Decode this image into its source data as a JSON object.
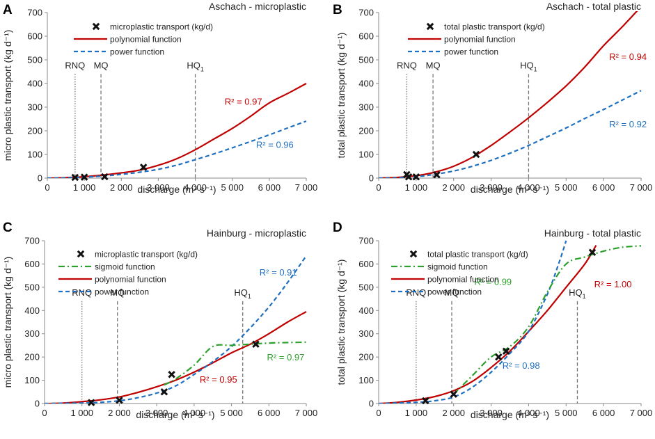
{
  "colors": {
    "poly": "#c00000",
    "power": "#1f6fc0",
    "sigmoid": "#2ca02c",
    "marker": "#111111",
    "axis": "#888888",
    "qline": "#777777"
  },
  "chart_data": [
    {
      "type": "scatter",
      "panel_label": "A",
      "title": "Aschach - microplastic",
      "xlabel": "discharge (m³ s⁻¹)",
      "ylabel": "micro plastic transport (kg d⁻¹)",
      "xlim": [
        0,
        7000
      ],
      "ylim": [
        0,
        700
      ],
      "xticks": [
        0,
        1000,
        2000,
        3000,
        4000,
        5000,
        6000,
        7000
      ],
      "yticks": [
        0,
        100,
        200,
        300,
        400,
        500,
        600,
        700
      ],
      "xtick_labels": [
        "0",
        "1 000",
        "2 000",
        "3 000",
        "4 000",
        "5 000",
        "6 000",
        "7 000"
      ],
      "ytick_labels": [
        "0",
        "100",
        "200",
        "300",
        "400",
        "500",
        "600",
        "700"
      ],
      "legend": [
        {
          "kind": "marker",
          "label": "microplastic transport (kg/d)"
        },
        {
          "kind": "poly",
          "label": "polynomial function"
        },
        {
          "kind": "power",
          "label": "power function"
        }
      ],
      "points": [
        {
          "x": 750,
          "y": 3
        },
        {
          "x": 1000,
          "y": 4
        },
        {
          "x": 1550,
          "y": 6
        },
        {
          "x": 2600,
          "y": 46
        }
      ],
      "series": [
        {
          "name": "polynomial function",
          "kind": "poly",
          "x": [
            0,
            500,
            1000,
            1500,
            2000,
            2500,
            3000,
            3500,
            4000,
            4500,
            5000,
            5500,
            6000,
            6500,
            7000
          ],
          "y": [
            0,
            2,
            6,
            13,
            22,
            34,
            54,
            82,
            120,
            165,
            210,
            262,
            318,
            358,
            400
          ]
        },
        {
          "name": "power function",
          "kind": "power",
          "x": [
            0,
            500,
            1000,
            1500,
            2000,
            2500,
            3000,
            3500,
            4000,
            4500,
            5000,
            5500,
            6000,
            6500,
            7000
          ],
          "y": [
            0,
            1,
            4,
            9,
            16,
            25,
            37,
            55,
            78,
            102,
            128,
            155,
            183,
            212,
            241
          ]
        }
      ],
      "qlines": [
        {
          "label": "RNQ",
          "x": 750,
          "style": "dot"
        },
        {
          "label": "MQ",
          "x": 1450,
          "style": "dash"
        },
        {
          "label": "HQ",
          "sub": "1",
          "x": 4000,
          "style": "dash"
        }
      ],
      "annotations": [
        {
          "text": "R² = 0.97",
          "x": 5300,
          "y": 310,
          "kind": "poly"
        },
        {
          "text": "R² = 0.96",
          "x": 6150,
          "y": 128,
          "kind": "power"
        }
      ]
    },
    {
      "type": "scatter",
      "panel_label": "B",
      "title": "Aschach - total plastic",
      "xlabel": "discharge (m³ s⁻¹)",
      "ylabel": "total plastic transport (kg d⁻¹)",
      "xlim": [
        0,
        7000
      ],
      "ylim": [
        0,
        700
      ],
      "xticks": [
        0,
        1000,
        2000,
        3000,
        4000,
        5000,
        6000,
        7000
      ],
      "yticks": [
        0,
        100,
        200,
        300,
        400,
        500,
        600,
        700
      ],
      "xtick_labels": [
        "0",
        "1 000",
        "2 000",
        "3 000",
        "4 000",
        "5 000",
        "6 000",
        "7 000"
      ],
      "ytick_labels": [
        "0",
        "100",
        "200",
        "300",
        "400",
        "500",
        "600",
        "700"
      ],
      "legend": [
        {
          "kind": "marker",
          "label": "total plastic transport (kg/d)"
        },
        {
          "kind": "poly",
          "label": "polynomial function"
        },
        {
          "kind": "power",
          "label": "power function"
        }
      ],
      "points": [
        {
          "x": 750,
          "y": 15
        },
        {
          "x": 800,
          "y": 5
        },
        {
          "x": 1000,
          "y": 5
        },
        {
          "x": 1550,
          "y": 14
        },
        {
          "x": 2600,
          "y": 100
        }
      ],
      "series": [
        {
          "name": "polynomial function",
          "kind": "poly",
          "x": [
            0,
            500,
            1000,
            1500,
            2000,
            2500,
            3000,
            3500,
            4000,
            4500,
            5000,
            5500,
            6000,
            6500,
            7000
          ],
          "y": [
            0,
            3,
            10,
            25,
            50,
            88,
            138,
            195,
            255,
            320,
            390,
            470,
            560,
            640,
            725
          ]
        },
        {
          "name": "power function",
          "kind": "power",
          "x": [
            0,
            500,
            1000,
            1500,
            2000,
            2500,
            3000,
            3500,
            4000,
            4500,
            5000,
            5500,
            6000,
            6500,
            7000
          ],
          "y": [
            0,
            1,
            6,
            16,
            30,
            50,
            75,
            105,
            138,
            175,
            212,
            252,
            290,
            330,
            370
          ]
        }
      ],
      "qlines": [
        {
          "label": "RNQ",
          "x": 750,
          "style": "dot"
        },
        {
          "label": "MQ",
          "x": 1450,
          "style": "dash"
        },
        {
          "label": "HQ",
          "sub": "1",
          "x": 4000,
          "style": "dash"
        }
      ],
      "annotations": [
        {
          "text": "R² = 0.94",
          "x": 6650,
          "y": 500,
          "kind": "poly"
        },
        {
          "text": "R² = 0.92",
          "x": 6650,
          "y": 215,
          "kind": "power"
        }
      ]
    },
    {
      "type": "scatter",
      "panel_label": "C",
      "title": "Hainburg - microplastic",
      "xlabel": "discharge (m³ s⁻¹)",
      "ylabel": "micro plastic transport (kg d⁻¹)",
      "xlim": [
        0,
        7000
      ],
      "ylim": [
        0,
        700
      ],
      "xticks": [
        0,
        1000,
        2000,
        3000,
        4000,
        5000,
        6000,
        7000
      ],
      "yticks": [
        0,
        100,
        200,
        300,
        400,
        500,
        600,
        700
      ],
      "xtick_labels": [
        "0",
        "1 000",
        "2 000",
        "3 000",
        "4 000",
        "5 000",
        "6 000",
        "7 000"
      ],
      "ytick_labels": [
        "0",
        "100",
        "200",
        "300",
        "400",
        "500",
        "600",
        "700"
      ],
      "legend": [
        {
          "kind": "marker",
          "label": "microplastic transport (kg/d)"
        },
        {
          "kind": "sigmoid",
          "label": "sigmoid function"
        },
        {
          "kind": "poly",
          "label": "polynomial function"
        },
        {
          "kind": "power",
          "label": "power function"
        }
      ],
      "points": [
        {
          "x": 1250,
          "y": 4
        },
        {
          "x": 2000,
          "y": 14
        },
        {
          "x": 3200,
          "y": 50
        },
        {
          "x": 3400,
          "y": 125
        },
        {
          "x": 5650,
          "y": 255
        }
      ],
      "series": [
        {
          "name": "polynomial function",
          "kind": "poly",
          "x": [
            0,
            500,
            1000,
            1500,
            2000,
            2500,
            3000,
            3500,
            4000,
            4500,
            5000,
            5500,
            6000,
            6500,
            7000
          ],
          "y": [
            0,
            2,
            8,
            16,
            28,
            48,
            72,
            100,
            135,
            175,
            218,
            255,
            300,
            350,
            395
          ]
        },
        {
          "name": "power function",
          "kind": "power",
          "x": [
            0,
            1000,
            1500,
            2000,
            2500,
            3000,
            3500,
            4000,
            4500,
            5000,
            5500,
            6000,
            6500,
            7000
          ],
          "y": [
            0,
            2,
            5,
            12,
            25,
            45,
            75,
            125,
            180,
            245,
            325,
            415,
            520,
            635
          ]
        },
        {
          "name": "sigmoid function",
          "kind": "sigmoid",
          "x": [
            3200,
            3500,
            4000,
            4500,
            5000,
            5500,
            6000,
            6500,
            7000
          ],
          "y": [
            80,
            105,
            165,
            245,
            250,
            255,
            260,
            262,
            264
          ]
        }
      ],
      "qlines": [
        {
          "label": "RNQ",
          "x": 1000,
          "style": "dot"
        },
        {
          "label": "MQ",
          "x": 1950,
          "style": "dash"
        },
        {
          "label": "HQ",
          "sub": "1",
          "x": 5300,
          "style": "dash"
        }
      ],
      "annotations": [
        {
          "text": "R² = 0.91",
          "x": 6250,
          "y": 550,
          "kind": "power"
        },
        {
          "text": "R² = 0.97",
          "x": 6450,
          "y": 185,
          "kind": "sigmoid"
        },
        {
          "text": "R² = 0.95",
          "x": 4650,
          "y": 90,
          "kind": "poly"
        }
      ]
    },
    {
      "type": "scatter",
      "panel_label": "D",
      "title": "Hainburg - total plastic",
      "xlabel": "discharge (m³ s⁻¹)",
      "ylabel": "total plastic transport (kg d⁻¹)",
      "xlim": [
        0,
        7000
      ],
      "ylim": [
        0,
        700
      ],
      "xticks": [
        0,
        1000,
        2000,
        3000,
        4000,
        5000,
        6000,
        7000
      ],
      "yticks": [
        0,
        100,
        200,
        300,
        400,
        500,
        600,
        700
      ],
      "xtick_labels": [
        "0",
        "1 000",
        "2 000",
        "3 000",
        "4 000",
        "5 000",
        "6 000",
        "7 000"
      ],
      "ytick_labels": [
        "0",
        "100",
        "200",
        "300",
        "400",
        "500",
        "600",
        "700"
      ],
      "legend": [
        {
          "kind": "marker",
          "label": "total plastic transport (kg/d)"
        },
        {
          "kind": "sigmoid",
          "label": "sigmoid function"
        },
        {
          "kind": "poly",
          "label": "polynomial function"
        },
        {
          "kind": "power",
          "label": "power function"
        }
      ],
      "points": [
        {
          "x": 1250,
          "y": 12
        },
        {
          "x": 2000,
          "y": 40
        },
        {
          "x": 3200,
          "y": 200
        },
        {
          "x": 3400,
          "y": 225
        },
        {
          "x": 5700,
          "y": 650
        }
      ],
      "series": [
        {
          "name": "polynomial function",
          "kind": "poly",
          "x": [
            0,
            500,
            1000,
            1500,
            2000,
            2500,
            3000,
            3500,
            4000,
            4500,
            5000,
            5500,
            5800
          ],
          "y": [
            0,
            5,
            15,
            30,
            55,
            95,
            155,
            225,
            310,
            400,
            500,
            600,
            680
          ]
        },
        {
          "name": "power function",
          "kind": "power",
          "x": [
            0,
            1000,
            1500,
            2000,
            2500,
            3000,
            3500,
            4000,
            4500,
            4800,
            5000
          ],
          "y": [
            0,
            5,
            12,
            28,
            70,
            135,
            215,
            310,
            470,
            600,
            700
          ]
        },
        {
          "name": "sigmoid function",
          "kind": "sigmoid",
          "x": [
            2000,
            2500,
            3000,
            3500,
            4000,
            4500,
            5000,
            5500,
            6000,
            6500,
            7000
          ],
          "y": [
            40,
            120,
            200,
            245,
            330,
            480,
            600,
            630,
            655,
            672,
            678
          ]
        }
      ],
      "qlines": [
        {
          "label": "RNQ",
          "x": 1000,
          "style": "dot"
        },
        {
          "label": "MQ",
          "x": 1950,
          "style": "dash"
        },
        {
          "label": "HQ",
          "sub": "1",
          "x": 5300,
          "style": "dash"
        }
      ],
      "annotations": [
        {
          "text": "R² = 0.99",
          "x": 3050,
          "y": 510,
          "kind": "sigmoid"
        },
        {
          "text": "R² = 1.00",
          "x": 6250,
          "y": 500,
          "kind": "poly"
        },
        {
          "text": "R² = 0.98",
          "x": 3800,
          "y": 150,
          "kind": "power"
        }
      ]
    }
  ]
}
